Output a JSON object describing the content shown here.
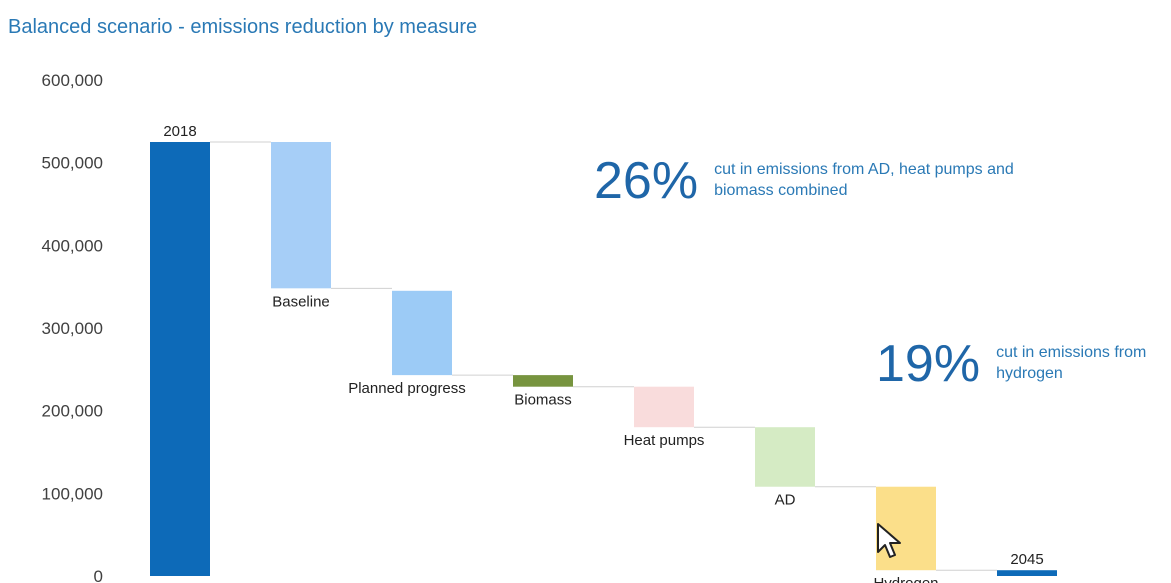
{
  "title": "Balanced scenario - emissions reduction by measure",
  "callouts": [
    {
      "value": "26%",
      "text": "cut in emissions from AD, heat pumps and biomass combined"
    },
    {
      "value": "19%",
      "text": "cut in emissions from hydrogen"
    }
  ],
  "chart_data": {
    "type": "bar",
    "subtype": "waterfall",
    "title": "Balanced scenario - emissions reduction by measure",
    "ylim": [
      0,
      600000
    ],
    "yticks": [
      0,
      100000,
      200000,
      300000,
      400000,
      500000,
      600000
    ],
    "ytick_labels": [
      "0",
      "100,000",
      "200,000",
      "300,000",
      "400,000",
      "500,000",
      "600,000"
    ],
    "grid": false,
    "legend": "none",
    "bars": [
      {
        "label": "2018",
        "start": 0,
        "end": 525000,
        "color": "#0d6ab8",
        "label_position": "above"
      },
      {
        "label": "Baseline",
        "start": 525000,
        "end": 348000,
        "color": "#a6cef7",
        "label_position": "below"
      },
      {
        "label": "Planned progress",
        "start": 345000,
        "end": 243000,
        "color": "#9ccbf6",
        "label_position": "below"
      },
      {
        "label": "Biomass",
        "start": 243000,
        "end": 229000,
        "color": "#77943f",
        "label_position": "below"
      },
      {
        "label": "Heat pumps",
        "start": 229000,
        "end": 180000,
        "color": "#f9dcdc",
        "label_position": "below"
      },
      {
        "label": "AD",
        "start": 180000,
        "end": 108000,
        "color": "#d5ebc4",
        "label_position": "below"
      },
      {
        "label": "Hydrogen",
        "start": 108000,
        "end": 7000,
        "color": "#fbdf8a",
        "label_position": "below"
      },
      {
        "label": "2045",
        "start": 0,
        "end": 7000,
        "color": "#0d6ab8",
        "label_position": "above"
      }
    ]
  }
}
